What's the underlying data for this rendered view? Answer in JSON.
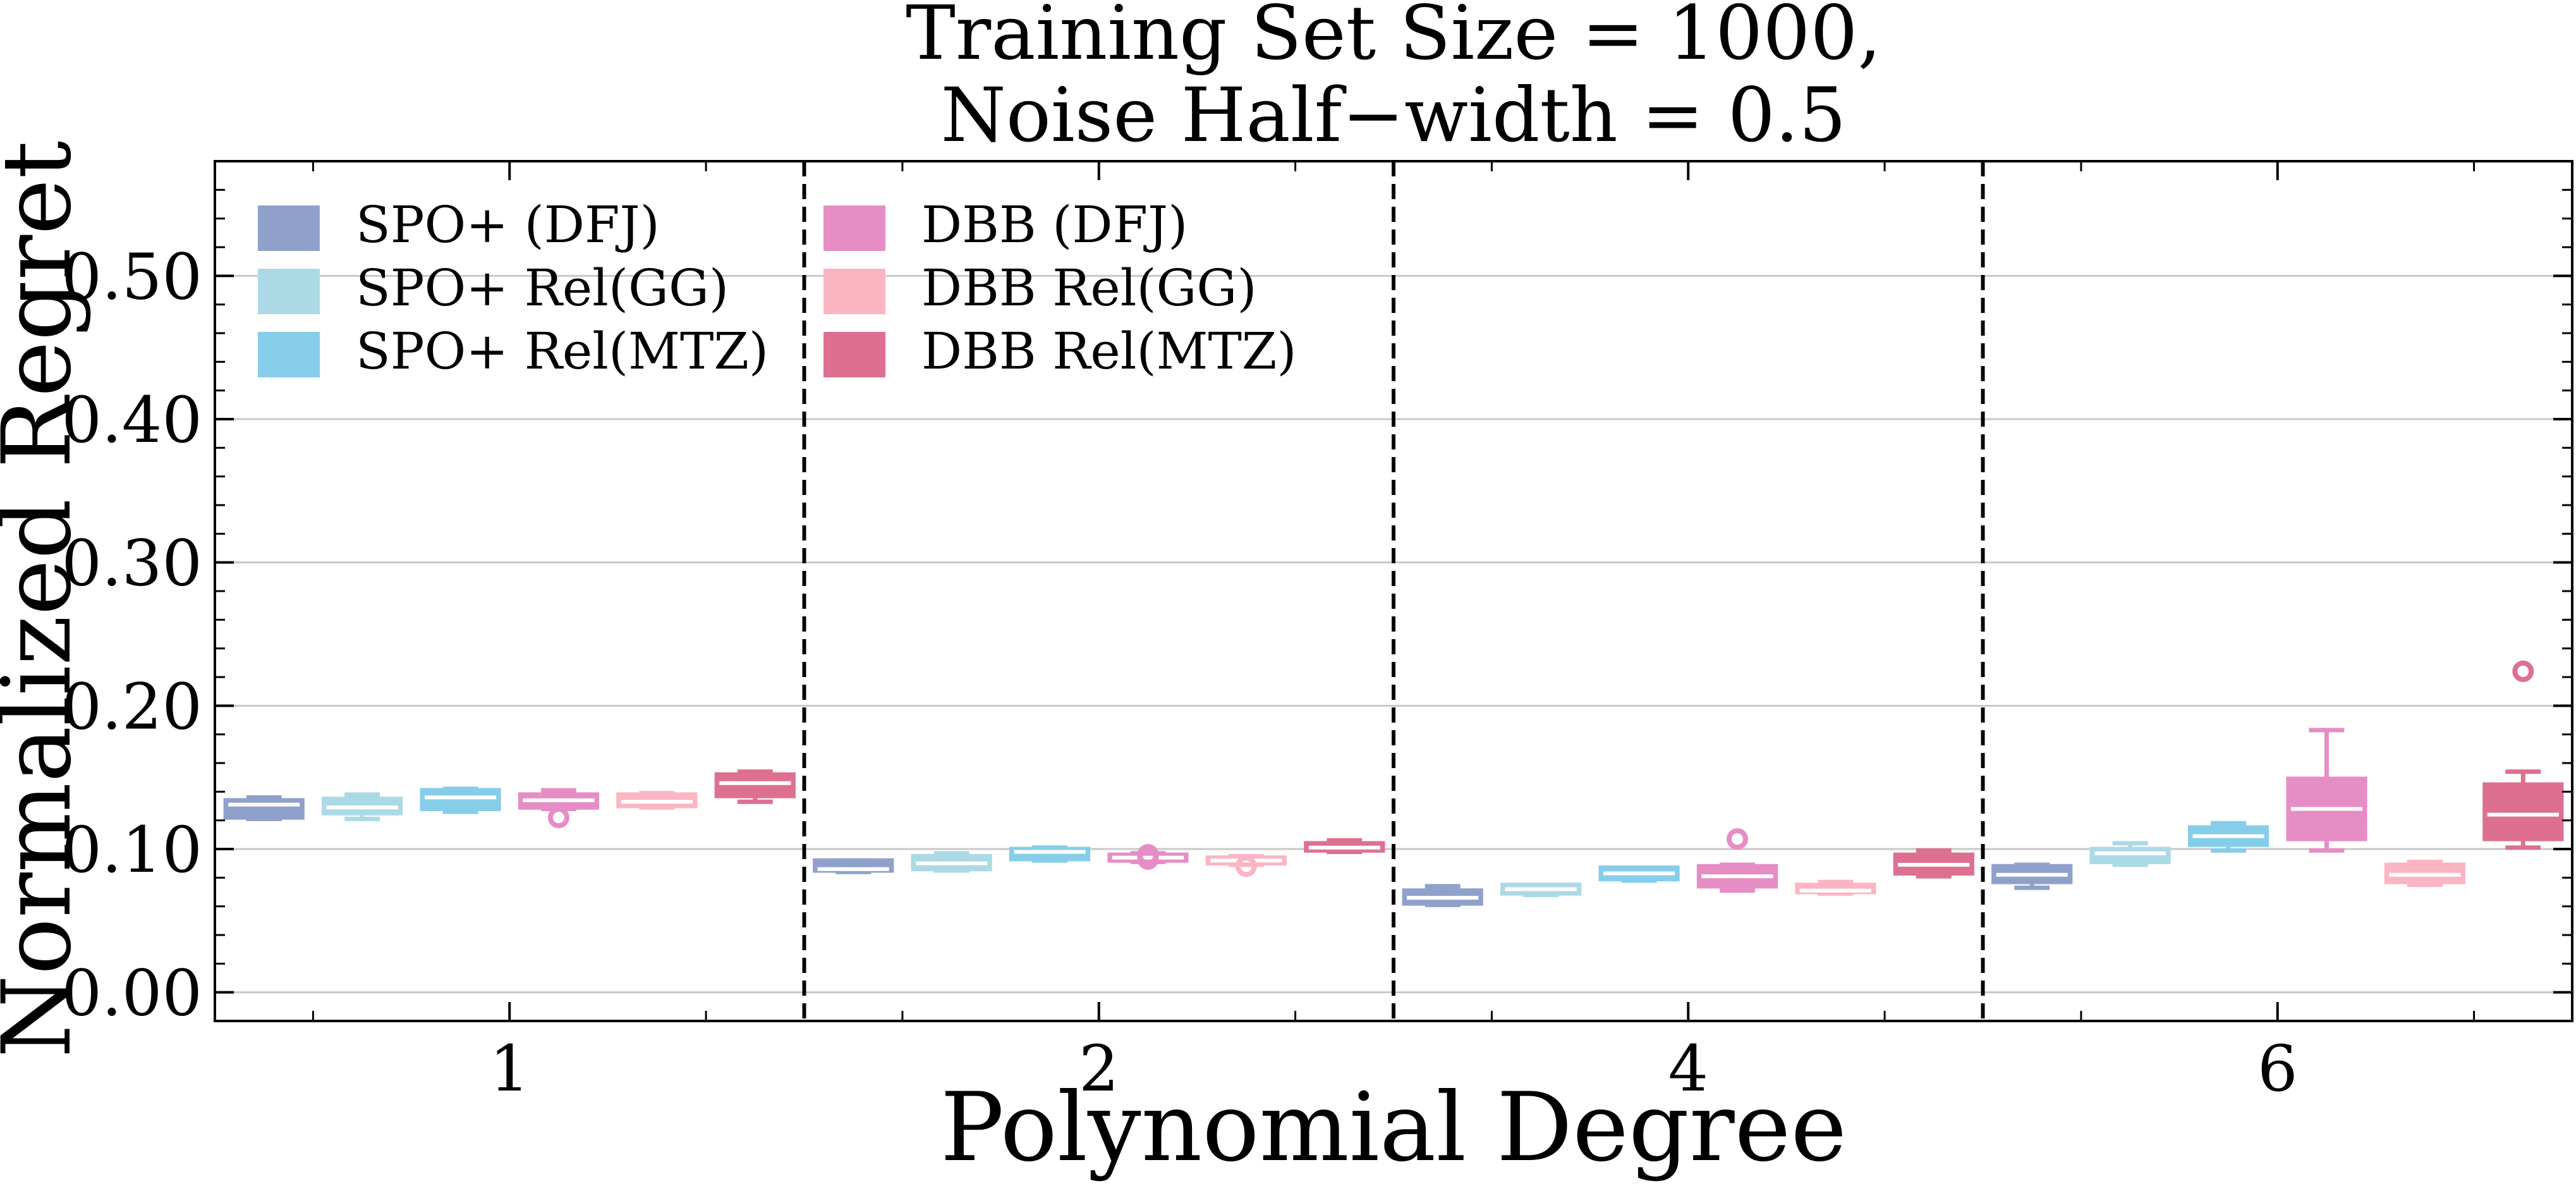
{
  "chart_data": {
    "type": "box",
    "title": [
      "Training Set Size = 1000,",
      "Noise Half−width = 0.5"
    ],
    "xlabel": "Polynomial Degree",
    "ylabel": "Normalized Regret",
    "categories": [
      "1",
      "2",
      "4",
      "6"
    ],
    "ylim": [
      -0.02,
      0.58
    ],
    "yticks": [
      0.0,
      0.1,
      0.2,
      0.3,
      0.4,
      0.5
    ],
    "ytick_labels": [
      "0.00",
      "0.10",
      "0.20",
      "0.30",
      "0.40",
      "0.50"
    ],
    "grid": "horizontal",
    "legend_position": "top-left",
    "series": [
      {
        "name": "SPO+ (DFJ)",
        "color": "#8fa1cb",
        "boxes": [
          {
            "min": 0.121,
            "q1": 0.122,
            "median": 0.131,
            "q3": 0.134,
            "max": 0.136,
            "outliers": []
          },
          {
            "min": 0.084,
            "q1": 0.085,
            "median": 0.086,
            "q3": 0.092,
            "max": 0.092,
            "outliers": []
          },
          {
            "min": 0.061,
            "q1": 0.062,
            "median": 0.066,
            "q3": 0.071,
            "max": 0.074,
            "outliers": []
          },
          {
            "min": 0.073,
            "q1": 0.077,
            "median": 0.082,
            "q3": 0.088,
            "max": 0.089,
            "outliers": []
          }
        ]
      },
      {
        "name": "SPO+ Rel(GG)",
        "color": "#acd9e6",
        "boxes": [
          {
            "min": 0.121,
            "q1": 0.125,
            "median": 0.129,
            "q3": 0.135,
            "max": 0.138,
            "outliers": []
          },
          {
            "min": 0.085,
            "q1": 0.086,
            "median": 0.09,
            "q3": 0.095,
            "max": 0.097,
            "outliers": []
          },
          {
            "min": 0.068,
            "q1": 0.069,
            "median": 0.072,
            "q3": 0.075,
            "max": 0.075,
            "outliers": []
          },
          {
            "min": 0.089,
            "q1": 0.091,
            "median": 0.097,
            "q3": 0.1,
            "max": 0.104,
            "outliers": []
          }
        ]
      },
      {
        "name": "SPO+ Rel(MTZ)",
        "color": "#86cde9",
        "boxes": [
          {
            "min": 0.126,
            "q1": 0.128,
            "median": 0.136,
            "q3": 0.141,
            "max": 0.142,
            "outliers": []
          },
          {
            "min": 0.092,
            "q1": 0.093,
            "median": 0.098,
            "q3": 0.1,
            "max": 0.101,
            "outliers": []
          },
          {
            "min": 0.078,
            "q1": 0.079,
            "median": 0.083,
            "q3": 0.087,
            "max": 0.087,
            "outliers": []
          },
          {
            "min": 0.099,
            "q1": 0.103,
            "median": 0.109,
            "q3": 0.115,
            "max": 0.118,
            "outliers": []
          }
        ]
      },
      {
        "name": "DBB (DFJ)",
        "color": "#e68dc5",
        "boxes": [
          {
            "min": 0.128,
            "q1": 0.129,
            "median": 0.134,
            "q3": 0.138,
            "max": 0.141,
            "outliers": [
              0.122
            ]
          },
          {
            "min": 0.091,
            "q1": 0.092,
            "median": 0.094,
            "q3": 0.096,
            "max": 0.097,
            "outliers": [
              0.093,
              0.096
            ]
          },
          {
            "min": 0.071,
            "q1": 0.074,
            "median": 0.081,
            "q3": 0.088,
            "max": 0.089,
            "outliers": [
              0.107
            ]
          },
          {
            "min": 0.099,
            "q1": 0.107,
            "median": 0.128,
            "q3": 0.149,
            "max": 0.183,
            "outliers": []
          }
        ]
      },
      {
        "name": "DBB Rel(GG)",
        "color": "#fbb5c3",
        "boxes": [
          {
            "min": 0.129,
            "q1": 0.13,
            "median": 0.133,
            "q3": 0.138,
            "max": 0.139,
            "outliers": []
          },
          {
            "min": 0.089,
            "q1": 0.09,
            "median": 0.092,
            "q3": 0.094,
            "max": 0.095,
            "outliers": [
              0.088
            ]
          },
          {
            "min": 0.069,
            "q1": 0.07,
            "median": 0.071,
            "q3": 0.075,
            "max": 0.077,
            "outliers": []
          },
          {
            "min": 0.075,
            "q1": 0.077,
            "median": 0.082,
            "q3": 0.089,
            "max": 0.091,
            "outliers": []
          }
        ]
      },
      {
        "name": "DBB Rel(MTZ)",
        "color": "#dd7091",
        "boxes": [
          {
            "min": 0.133,
            "q1": 0.137,
            "median": 0.146,
            "q3": 0.152,
            "max": 0.154,
            "outliers": []
          },
          {
            "min": 0.098,
            "q1": 0.099,
            "median": 0.101,
            "q3": 0.104,
            "max": 0.106,
            "outliers": []
          },
          {
            "min": 0.081,
            "q1": 0.083,
            "median": 0.089,
            "q3": 0.096,
            "max": 0.099,
            "outliers": []
          },
          {
            "min": 0.101,
            "q1": 0.107,
            "median": 0.124,
            "q3": 0.145,
            "max": 0.154,
            "outliers": [
              0.224
            ]
          }
        ]
      }
    ]
  }
}
